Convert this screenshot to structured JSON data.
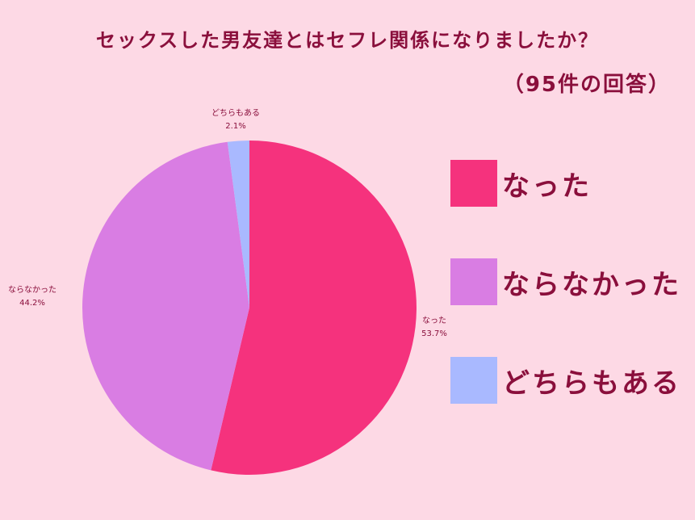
{
  "chart_data": {
    "type": "pie",
    "title": "セックスした男友達とはセフレ関係になりましたか？",
    "subtitle": "（95件の回答）",
    "slices": [
      {
        "label": "なった",
        "value": 53.7,
        "display": "53.7%",
        "color": "#f5327d"
      },
      {
        "label": "ならなかった",
        "value": 44.2,
        "display": "44.2%",
        "color": "#d97de3"
      },
      {
        "label": "どちらもある",
        "value": 2.1,
        "display": "2.1%",
        "color": "#a9b9ff"
      }
    ],
    "legend_position": "right"
  }
}
